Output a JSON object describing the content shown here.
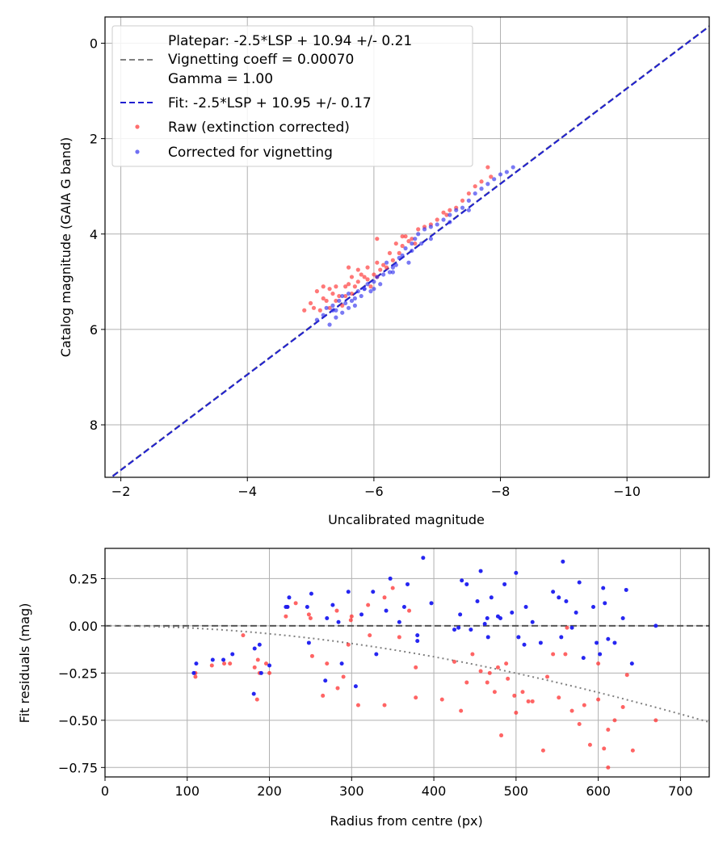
{
  "chart_data": [
    {
      "type": "scatter",
      "xlabel": "Uncalibrated magnitude",
      "ylabel": "Catalog magnitude (GAIA G band)",
      "xlim": [
        -1.75,
        -11.3
      ],
      "ylim": [
        9.1,
        -0.55
      ],
      "xticks": [
        -2,
        -4,
        -6,
        -8,
        -10
      ],
      "xtick_labels": [
        "−2",
        "−4",
        "−6",
        "−8",
        "−10"
      ],
      "yticks": [
        0,
        2,
        4,
        6,
        8
      ],
      "ytick_labels": [
        "0",
        "2",
        "4",
        "6",
        "8"
      ],
      "grid": true,
      "legend_position": "top-left",
      "legend": {
        "platepar": [
          "Platepar: -2.5*LSP + 10.94 +/- 0.21",
          "Vignetting coeff = 0.00070",
          "Gamma = 1.00"
        ],
        "fit": "Fit: -2.5*LSP + 10.95 +/- 0.17",
        "raw": "Raw (extinction corrected)",
        "corrected": "Corrected for vignetting"
      },
      "colors": {
        "platepar": "#808080",
        "fit": "#2020d0",
        "raw": "#ff3030",
        "corrected": "#3333ee",
        "grid": "#b0b0b0"
      },
      "lines": [
        {
          "name": "Platepar",
          "slope": 1,
          "intercept": 10.94,
          "style": "dashed",
          "color": "#808080"
        },
        {
          "name": "Fit",
          "slope": 1,
          "intercept": 10.95,
          "style": "dashed",
          "color": "#2020d0"
        }
      ],
      "series": [
        {
          "name": "Raw (extinction corrected)",
          "x": [
            -4.9,
            -5.0,
            -5.05,
            -5.1,
            -5.15,
            -5.2,
            -5.2,
            -5.25,
            -5.3,
            -5.3,
            -5.35,
            -5.4,
            -5.4,
            -5.45,
            -5.5,
            -5.55,
            -5.55,
            -5.6,
            -5.6,
            -5.65,
            -5.7,
            -5.75,
            -5.8,
            -5.85,
            -5.9,
            -5.9,
            -5.95,
            -6.0,
            -6.05,
            -6.05,
            -6.1,
            -6.15,
            -6.2,
            -6.25,
            -6.3,
            -6.35,
            -6.4,
            -6.45,
            -6.5,
            -6.55,
            -6.6,
            -6.65,
            -6.7,
            -6.8,
            -6.9,
            -7.0,
            -7.1,
            -7.2,
            -7.3,
            -7.4,
            -7.5,
            -7.6,
            -7.7,
            -7.8,
            -7.85,
            -5.65,
            -5.75,
            -6.05,
            -6.45,
            -7.15
          ],
          "y": [
            5.6,
            5.45,
            5.55,
            5.2,
            5.6,
            5.1,
            5.35,
            5.4,
            5.15,
            5.55,
            5.25,
            5.4,
            5.1,
            5.3,
            5.5,
            5.1,
            5.3,
            5.05,
            4.7,
            4.9,
            5.1,
            5.0,
            4.85,
            4.9,
            4.95,
            4.7,
            5.1,
            4.85,
            4.6,
            4.9,
            4.75,
            4.65,
            4.7,
            4.4,
            4.55,
            4.2,
            4.4,
            4.25,
            4.05,
            4.15,
            4.1,
            4.2,
            3.9,
            3.85,
            3.8,
            3.7,
            3.55,
            3.5,
            3.45,
            3.3,
            3.15,
            3.0,
            2.9,
            2.6,
            2.8,
            5.25,
            4.75,
            4.1,
            4.05,
            3.6
          ]
        },
        {
          "name": "Corrected for vignetting",
          "x": [
            -5.1,
            -5.2,
            -5.25,
            -5.3,
            -5.35,
            -5.4,
            -5.45,
            -5.5,
            -5.5,
            -5.55,
            -5.6,
            -5.6,
            -5.65,
            -5.7,
            -5.75,
            -5.8,
            -5.85,
            -5.9,
            -5.95,
            -6.0,
            -6.05,
            -6.1,
            -6.15,
            -6.2,
            -6.25,
            -6.3,
            -6.35,
            -6.4,
            -6.45,
            -6.5,
            -6.55,
            -6.6,
            -6.65,
            -6.7,
            -6.75,
            -6.8,
            -6.9,
            -7.0,
            -7.1,
            -7.2,
            -7.3,
            -7.4,
            -7.5,
            -7.6,
            -7.7,
            -7.8,
            -7.9,
            -8.0,
            -8.1,
            -8.2,
            -5.4,
            -5.7,
            -6.0,
            -6.3,
            -6.6,
            -6.9,
            -7.2,
            -7.5,
            -5.35,
            -5.85
          ],
          "y": [
            5.8,
            5.7,
            5.55,
            5.9,
            5.5,
            5.6,
            5.4,
            5.65,
            5.3,
            5.45,
            5.55,
            5.25,
            5.4,
            5.35,
            5.2,
            5.3,
            5.15,
            5.05,
            5.2,
            5.0,
            4.9,
            5.05,
            4.85,
            4.6,
            4.8,
            4.7,
            4.65,
            4.5,
            4.45,
            4.3,
            4.6,
            4.2,
            4.1,
            4.0,
            4.2,
            3.9,
            3.85,
            3.8,
            3.7,
            3.6,
            3.5,
            3.45,
            3.3,
            3.15,
            3.05,
            2.95,
            2.85,
            2.75,
            2.7,
            2.6,
            5.75,
            5.5,
            5.15,
            4.8,
            4.35,
            4.1,
            3.75,
            3.5,
            5.6,
            5.15
          ]
        }
      ]
    },
    {
      "type": "scatter",
      "xlabel": "Radius from centre (px)",
      "ylabel": "Fit residuals (mag)",
      "xlim": [
        0,
        735
      ],
      "ylim": [
        -0.8,
        0.41
      ],
      "xticks": [
        0,
        100,
        200,
        300,
        400,
        500,
        600,
        700
      ],
      "xtick_labels": [
        "0",
        "100",
        "200",
        "300",
        "400",
        "500",
        "600",
        "700"
      ],
      "yticks": [
        -0.75,
        -0.5,
        -0.25,
        0.0,
        0.25
      ],
      "ytick_labels": [
        "−0.75",
        "−0.50",
        "−0.25",
        "0.00",
        "0.25"
      ],
      "grid": true,
      "lines": [
        {
          "name": "zero",
          "style": "dashed",
          "color": "#555555",
          "y": 0
        },
        {
          "name": "vignetting curve",
          "style": "dotted",
          "color": "#808080",
          "vignetting_coeff": 0.0007
        }
      ],
      "series": [
        {
          "name": "Raw (extinction corrected)",
          "x": [
            110,
            110,
            130,
            145,
            152,
            168,
            182,
            185,
            186,
            188,
            196,
            200,
            220,
            222,
            248,
            252,
            265,
            270,
            283,
            290,
            296,
            299,
            308,
            320,
            340,
            350,
            358,
            370,
            378,
            410,
            425,
            433,
            440,
            447,
            457,
            465,
            468,
            474,
            482,
            488,
            490,
            500,
            508,
            515,
            520,
            533,
            545,
            552,
            562,
            568,
            577,
            583,
            590,
            600,
            607,
            612,
            612,
            620,
            630,
            635,
            642,
            670,
            378,
            340,
            300,
            250,
            232,
            282,
            322,
            478,
            498,
            538,
            560,
            600
          ],
          "x_note": "radius px",
          "y": [
            -0.27,
            -0.25,
            -0.21,
            -0.2,
            -0.2,
            -0.05,
            -0.22,
            -0.39,
            -0.18,
            -0.25,
            -0.2,
            -0.25,
            0.05,
            0.1,
            0.06,
            -0.16,
            -0.37,
            -0.2,
            -0.33,
            -0.27,
            -0.1,
            0.03,
            -0.42,
            0.11,
            -0.42,
            0.2,
            -0.06,
            0.08,
            -0.38,
            -0.39,
            -0.19,
            -0.45,
            -0.3,
            -0.15,
            -0.24,
            -0.3,
            -0.25,
            -0.35,
            -0.58,
            -0.2,
            -0.28,
            -0.46,
            -0.35,
            -0.4,
            -0.4,
            -0.66,
            -0.15,
            -0.38,
            -0.01,
            -0.45,
            -0.52,
            -0.42,
            -0.63,
            -0.39,
            -0.65,
            -0.75,
            -0.55,
            -0.5,
            -0.43,
            -0.26,
            -0.66,
            -0.5,
            -0.22,
            0.15,
            0.05,
            0.04,
            0.12,
            0.08,
            -0.05,
            -0.22,
            -0.37,
            -0.27,
            -0.15,
            -0.2
          ]
        },
        {
          "name": "Corrected for vignetting",
          "x": [
            108,
            111,
            131,
            144,
            155,
            181,
            182,
            188,
            190,
            200,
            220,
            224,
            246,
            248,
            251,
            268,
            277,
            284,
            288,
            296,
            305,
            312,
            326,
            342,
            347,
            358,
            364,
            368,
            380,
            387,
            397,
            425,
            432,
            434,
            440,
            445,
            453,
            457,
            462,
            466,
            470,
            478,
            481,
            486,
            495,
            500,
            503,
            512,
            520,
            530,
            545,
            552,
            557,
            561,
            568,
            573,
            577,
            582,
            594,
            598,
            606,
            608,
            612,
            620,
            630,
            634,
            641,
            670,
            222,
            270,
            330,
            380,
            430,
            465,
            510,
            555,
            602
          ],
          "y": [
            -0.25,
            -0.2,
            -0.18,
            -0.18,
            -0.15,
            -0.36,
            -0.12,
            -0.1,
            -0.25,
            -0.21,
            0.1,
            0.15,
            0.1,
            -0.09,
            0.17,
            -0.29,
            0.11,
            0.02,
            -0.2,
            0.18,
            -0.32,
            0.06,
            0.18,
            0.08,
            0.25,
            0.02,
            0.1,
            0.22,
            -0.08,
            0.36,
            0.12,
            -0.02,
            0.06,
            0.24,
            0.22,
            -0.02,
            0.13,
            0.29,
            0.01,
            -0.06,
            0.15,
            0.05,
            0.04,
            0.22,
            0.07,
            0.28,
            -0.06,
            0.1,
            0.02,
            -0.09,
            0.18,
            0.15,
            0.34,
            0.13,
            -0.01,
            0.07,
            0.23,
            -0.17,
            0.1,
            -0.09,
            0.2,
            0.12,
            -0.07,
            -0.09,
            0.04,
            0.19,
            -0.2,
            0.0,
            0.1,
            0.04,
            -0.15,
            -0.05,
            -0.01,
            0.04,
            -0.1,
            -0.06,
            -0.15
          ]
        }
      ]
    }
  ]
}
